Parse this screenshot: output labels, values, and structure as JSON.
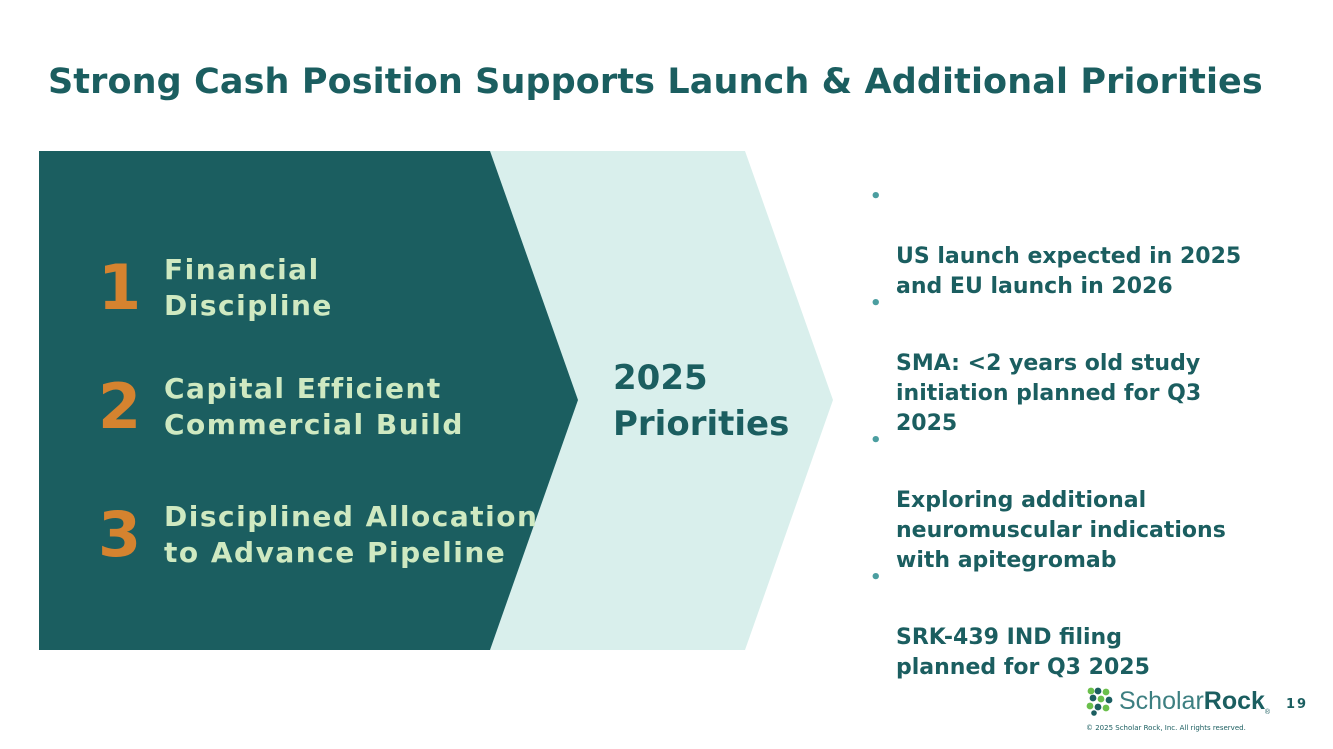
{
  "title": "Strong Cash Position Supports Launch & Additional Priorities",
  "colors": {
    "dark_teal": "#1b5e60",
    "light_mint": "#d9efec",
    "orange": "#d5832f",
    "light_green_text": "#cfe9c1"
  },
  "priorities": [
    {
      "number": "1",
      "label": "Financial\nDiscipline"
    },
    {
      "number": "2",
      "label": "Capital Efficient\nCommercial Build"
    },
    {
      "number": "3",
      "label": "Disciplined Allocation\nto Advance Pipeline"
    }
  ],
  "center_label": "2025\nPriorities",
  "bullets": [
    "US launch expected in 2025\nand EU launch in 2026",
    "SMA: <2 years old study\ninitiation planned for Q3\n2025",
    "Exploring additional\nneuromuscular indications\nwith apitegromab",
    "SRK-439 IND filing\nplanned for Q3 2025"
  ],
  "logo": {
    "icon": "scholar-rock-logo-icon",
    "text_light": "Scholar",
    "text_bold": "Rock",
    "tm": "®"
  },
  "page_number": "19",
  "copyright": "© 2025 Scholar Rock, Inc. All rights reserved."
}
